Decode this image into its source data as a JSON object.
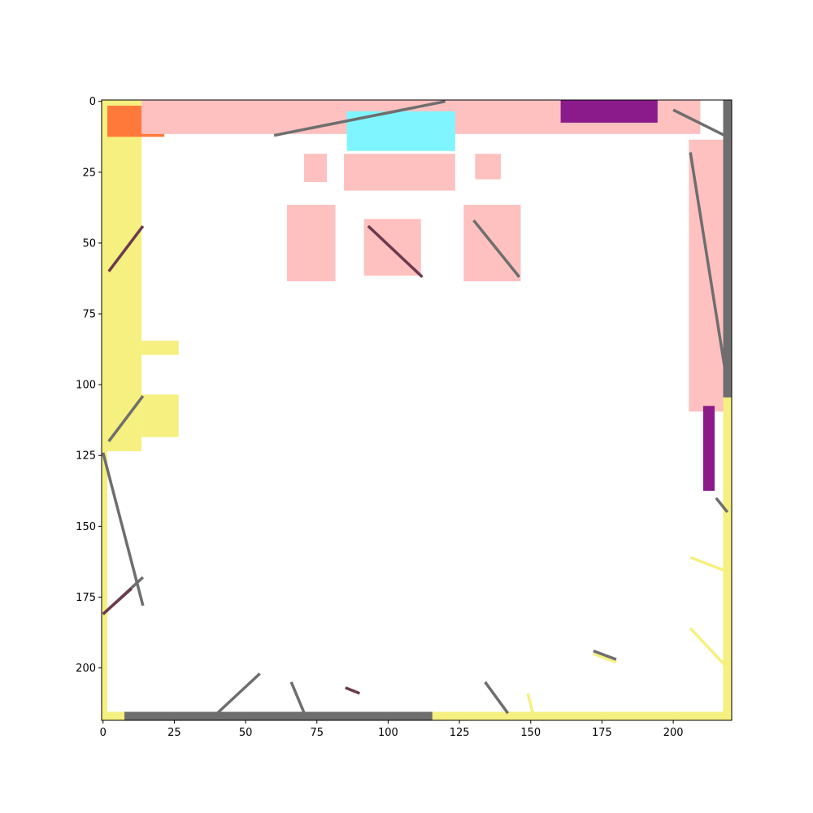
{
  "chart_data": {
    "type": "heatmap",
    "title": "",
    "xlabel": "",
    "ylabel": "",
    "grid": false,
    "legend": "none",
    "image_shape": [
      219,
      221
    ],
    "xlim": [
      -0.5,
      220.5
    ],
    "ylim": [
      218.5,
      -0.5
    ],
    "x_ticks": [
      0,
      25,
      50,
      75,
      100,
      125,
      150,
      175,
      200
    ],
    "y_ticks": [
      0,
      25,
      50,
      75,
      100,
      125,
      150,
      175,
      200
    ],
    "x_tick_labels": [
      "0",
      "25",
      "50",
      "75",
      "100",
      "125",
      "150",
      "175",
      "200"
    ],
    "y_tick_labels": [
      "0",
      "25",
      "50",
      "75",
      "100",
      "125",
      "150",
      "175",
      "200"
    ],
    "colors": {
      "background": "#ffffff",
      "yellow": "#f5f07f",
      "pink": "#ffc0c0",
      "gray": "#6e6e6e",
      "maroon": "#6b3a4e",
      "purple": "#8b1a8b",
      "orange": "#ff7a3a",
      "cyan": "#7ff5ff"
    },
    "regions": [
      {
        "color": "yellow",
        "shape": "rect",
        "x": [
          0,
          14
        ],
        "y": [
          0,
          124
        ]
      },
      {
        "color": "orange",
        "shape": "rect",
        "x": [
          2,
          22
        ],
        "y": [
          2,
          13
        ]
      },
      {
        "color": "pink",
        "shape": "rect",
        "x": [
          14,
          210
        ],
        "y": [
          0,
          12
        ]
      },
      {
        "color": "pink",
        "shape": "rect",
        "x": [
          206,
          221
        ],
        "y": [
          14,
          110
        ]
      },
      {
        "color": "pink",
        "shape": "rect",
        "x": [
          65,
          82
        ],
        "y": [
          37,
          64
        ]
      },
      {
        "color": "pink",
        "shape": "rect",
        "x": [
          92,
          112
        ],
        "y": [
          42,
          62
        ]
      },
      {
        "color": "pink",
        "shape": "rect",
        "x": [
          127,
          147
        ],
        "y": [
          37,
          64
        ]
      },
      {
        "color": "pink",
        "shape": "rect",
        "x": [
          71,
          79
        ],
        "y": [
          19,
          29
        ]
      },
      {
        "color": "pink",
        "shape": "rect",
        "x": [
          85,
          124
        ],
        "y": [
          19,
          32
        ]
      },
      {
        "color": "pink",
        "shape": "rect",
        "x": [
          131,
          140
        ],
        "y": [
          19,
          28
        ]
      },
      {
        "color": "yellow",
        "shape": "rect",
        "x": [
          14,
          27
        ],
        "y": [
          104,
          119
        ]
      },
      {
        "color": "yellow",
        "shape": "rect",
        "x": [
          14,
          27
        ],
        "y": [
          85,
          90
        ]
      },
      {
        "color": "yellow",
        "shape": "rect",
        "x": [
          218,
          221
        ],
        "y": [
          105,
          219
        ]
      },
      {
        "color": "gray",
        "shape": "rect",
        "x": [
          218,
          221
        ],
        "y": [
          0,
          105
        ]
      },
      {
        "color": "yellow",
        "shape": "rect",
        "x": [
          0,
          221
        ],
        "y": [
          216,
          219
        ]
      },
      {
        "color": "gray",
        "shape": "rect",
        "x": [
          8,
          116
        ],
        "y": [
          216,
          219
        ]
      },
      {
        "color": "yellow",
        "shape": "rect",
        "x": [
          0,
          2
        ],
        "y": [
          124,
          219
        ]
      },
      {
        "color": "cyan",
        "shape": "rect",
        "x": [
          86,
          124
        ],
        "y": [
          4,
          18
        ]
      },
      {
        "color": "purple",
        "shape": "rect",
        "x": [
          161,
          195
        ],
        "y": [
          0,
          8
        ]
      },
      {
        "color": "purple",
        "shape": "rect",
        "x": [
          211,
          215
        ],
        "y": [
          108,
          138
        ]
      }
    ],
    "lines": [
      {
        "color": "gray",
        "x": [
          0,
          14
        ],
        "y": [
          124,
          178
        ]
      },
      {
        "color": "gray",
        "x": [
          39,
          55
        ],
        "y": [
          217,
          202
        ]
      },
      {
        "color": "gray",
        "x": [
          66,
          71
        ],
        "y": [
          205,
          217
        ]
      },
      {
        "color": "gray",
        "x": [
          134,
          142
        ],
        "y": [
          205,
          216
        ]
      },
      {
        "color": "gray",
        "x": [
          206,
          219
        ],
        "y": [
          18,
          100
        ]
      },
      {
        "color": "gray",
        "x": [
          0,
          14
        ],
        "y": [
          181,
          168
        ]
      },
      {
        "color": "maroon",
        "x": [
          0,
          10
        ],
        "y": [
          181,
          172
        ]
      },
      {
        "color": "gray",
        "x": [
          130,
          146
        ],
        "y": [
          42,
          62
        ]
      },
      {
        "color": "maroon",
        "x": [
          93,
          112
        ],
        "y": [
          44,
          62
        ]
      },
      {
        "color": "gray",
        "x": [
          60,
          120
        ],
        "y": [
          12,
          0
        ]
      },
      {
        "color": "gray",
        "x": [
          2,
          14
        ],
        "y": [
          120,
          104
        ]
      },
      {
        "color": "maroon",
        "x": [
          2,
          14
        ],
        "y": [
          60,
          44
        ]
      },
      {
        "color": "gray",
        "x": [
          200,
          218
        ],
        "y": [
          3,
          12
        ]
      },
      {
        "color": "yellow",
        "x": [
          206,
          219
        ],
        "y": [
          186,
          200
        ]
      },
      {
        "color": "yellow",
        "x": [
          206,
          219
        ],
        "y": [
          161,
          166
        ]
      },
      {
        "color": "yellow",
        "x": [
          172,
          180
        ],
        "y": [
          195,
          198
        ]
      },
      {
        "color": "gray",
        "x": [
          172,
          180
        ],
        "y": [
          194,
          197
        ]
      },
      {
        "color": "yellow",
        "x": [
          149,
          151
        ],
        "y": [
          209,
          217
        ]
      },
      {
        "color": "maroon",
        "x": [
          85,
          90
        ],
        "y": [
          207,
          209
        ]
      },
      {
        "color": "gray",
        "x": [
          215,
          219
        ],
        "y": [
          140,
          145
        ]
      }
    ]
  }
}
